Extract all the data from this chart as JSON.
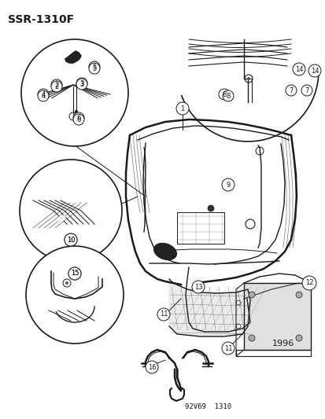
{
  "title": "SSR-1310F",
  "part_number": "92V69  1310",
  "year": "1996",
  "bg": "#ffffff",
  "lc": "#1a1a1a",
  "fig_width": 4.14,
  "fig_height": 5.33,
  "dpi": 100
}
